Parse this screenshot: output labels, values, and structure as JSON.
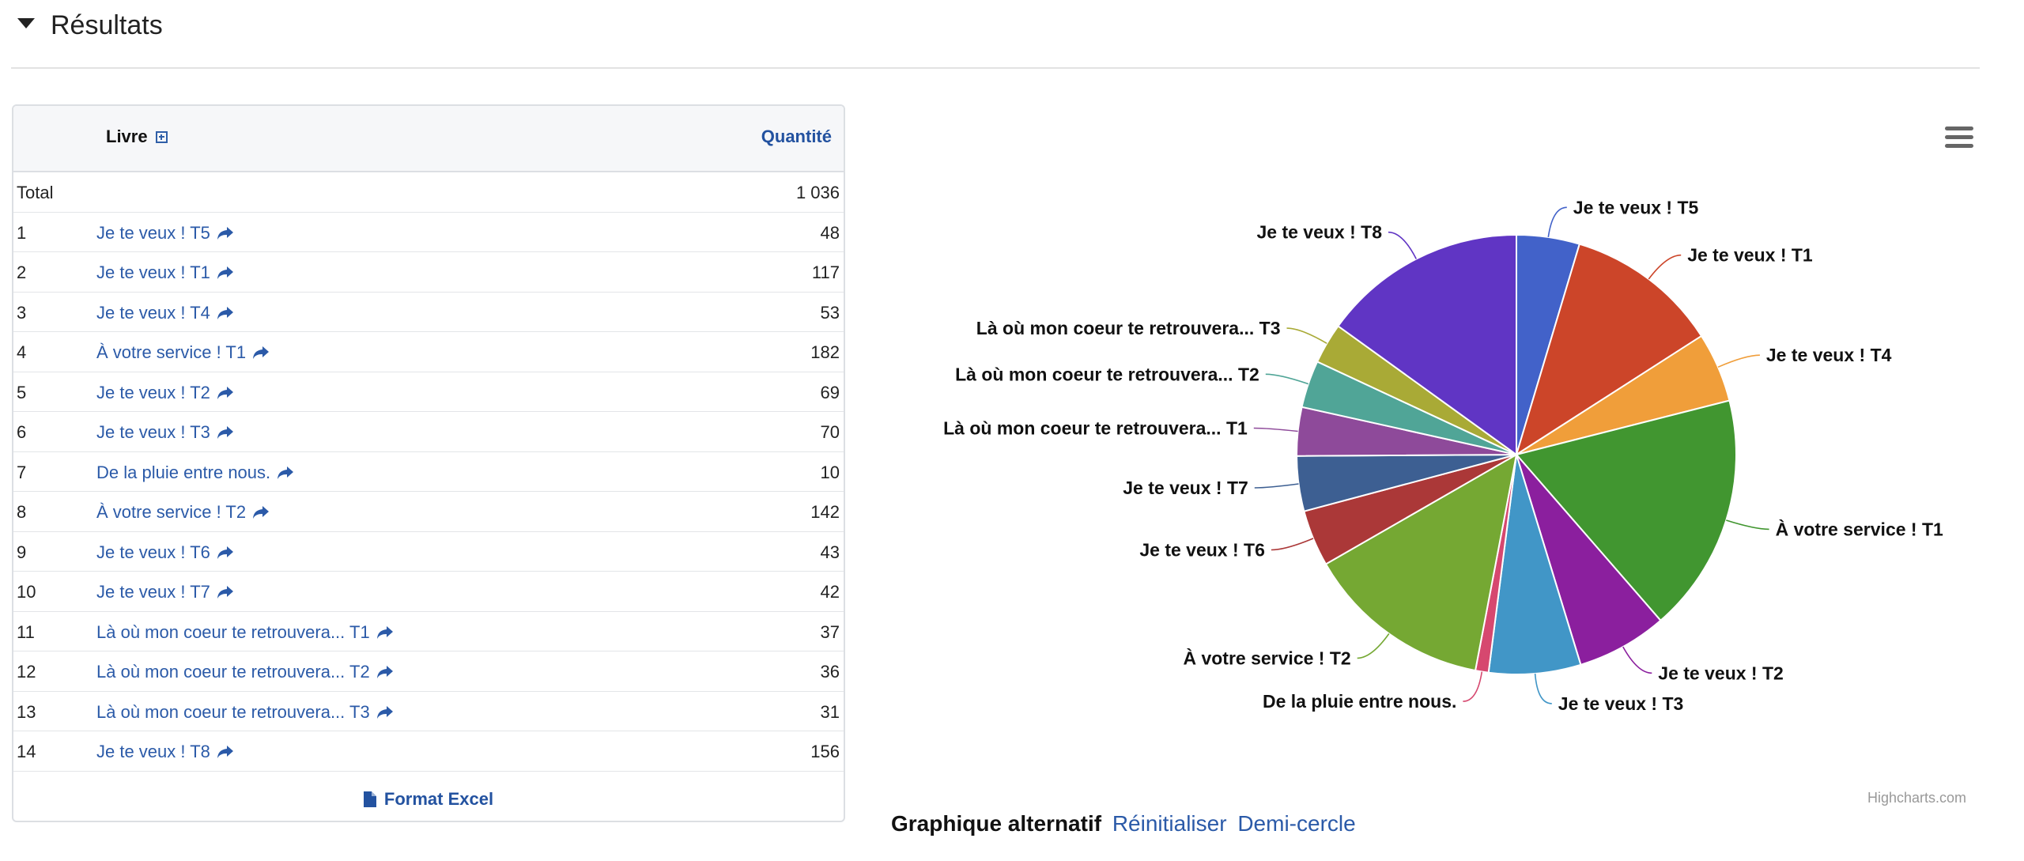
{
  "section": {
    "title": "Résultats"
  },
  "table": {
    "col_livre": "Livre",
    "col_quantite": "Quantité",
    "total_label": "Total",
    "total_value": "1 036",
    "rows": [
      {
        "rank": "1",
        "book": "Je te veux ! T5",
        "qty": "48"
      },
      {
        "rank": "2",
        "book": "Je te veux ! T1",
        "qty": "117"
      },
      {
        "rank": "3",
        "book": "Je te veux ! T4",
        "qty": "53"
      },
      {
        "rank": "4",
        "book": "À votre service ! T1",
        "qty": "182"
      },
      {
        "rank": "5",
        "book": "Je te veux ! T2",
        "qty": "69"
      },
      {
        "rank": "6",
        "book": "Je te veux ! T3",
        "qty": "70"
      },
      {
        "rank": "7",
        "book": "De la pluie entre nous.",
        "qty": "10"
      },
      {
        "rank": "8",
        "book": "À votre service ! T2",
        "qty": "142"
      },
      {
        "rank": "9",
        "book": "Je te veux ! T6",
        "qty": "43"
      },
      {
        "rank": "10",
        "book": "Je te veux ! T7",
        "qty": "42"
      },
      {
        "rank": "11",
        "book": "Là où mon coeur te retrouvera... T1",
        "qty": "37"
      },
      {
        "rank": "12",
        "book": "Là où mon coeur te retrouvera... T2",
        "qty": "36"
      },
      {
        "rank": "13",
        "book": "Là où mon coeur te retrouvera... T3",
        "qty": "31"
      },
      {
        "rank": "14",
        "book": "Je te veux ! T8",
        "qty": "156"
      }
    ],
    "excel_label": "Format Excel"
  },
  "chart_data": {
    "type": "pie",
    "categories": [
      "Je te veux ! T5",
      "Je te veux ! T1",
      "Je te veux ! T4",
      "À votre service ! T1",
      "Je te veux ! T2",
      "Je te veux ! T3",
      "De la pluie entre nous.",
      "À votre service ! T2",
      "Je te veux ! T6",
      "Je te veux ! T7",
      "Là où mon coeur te retrouvera... T1",
      "Là où mon coeur te retrouvera... T2",
      "Là où mon coeur te retrouvera... T3",
      "Je te veux ! T8"
    ],
    "values": [
      48,
      117,
      53,
      182,
      69,
      70,
      10,
      142,
      43,
      42,
      37,
      36,
      31,
      156
    ],
    "colors": [
      "#4262c9",
      "#cc4529",
      "#f09e3a",
      "#419630",
      "#8b1f9e",
      "#4196c7",
      "#d6486f",
      "#75a833",
      "#ab3838",
      "#3d5f92",
      "#8e4a9a",
      "#50a597",
      "#a9aa36",
      "#6035c4"
    ],
    "credits": "Highcharts.com"
  },
  "alt": {
    "label": "Graphique alternatif",
    "reset": "Réinitialiser",
    "half": "Demi-cercle"
  }
}
